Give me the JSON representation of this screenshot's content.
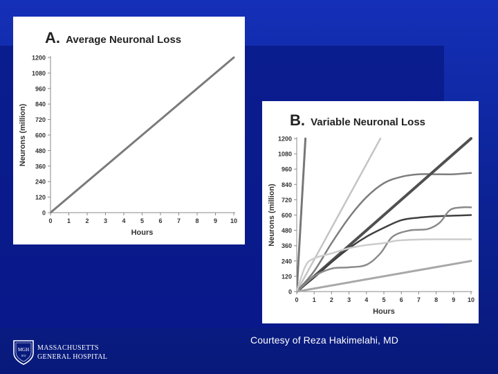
{
  "chart_data": [
    {
      "type": "line",
      "letter": "A.",
      "title": "Average Neuronal Loss",
      "xlabel": "Hours",
      "ylabel": "Neurons (million)",
      "xlim": [
        0,
        10
      ],
      "ylim": [
        0,
        1200
      ],
      "xticks": [
        "0",
        "1",
        "2",
        "3",
        "4",
        "5",
        "6",
        "7",
        "8",
        "9",
        "10"
      ],
      "yticks": [
        "0",
        "120",
        "240",
        "360",
        "480",
        "600",
        "720",
        "840",
        "960",
        "1080",
        "1200"
      ],
      "grid": false,
      "series": [
        {
          "name": "average",
          "color": "#7a7a7a",
          "width": 3,
          "points": [
            [
              0,
              0
            ],
            [
              10,
              1200
            ]
          ]
        }
      ]
    },
    {
      "type": "line",
      "letter": "B.",
      "title": "Variable Neuronal Loss",
      "xlabel": "Hours",
      "ylabel": "Neurons (million)",
      "xlim": [
        0,
        10
      ],
      "ylim": [
        0,
        1200
      ],
      "xticks": [
        "0",
        "1",
        "2",
        "3",
        "4",
        "5",
        "6",
        "7",
        "8",
        "9",
        "10"
      ],
      "yticks": [
        "0",
        "120",
        "240",
        "360",
        "480",
        "600",
        "720",
        "840",
        "960",
        "1080",
        "1200"
      ],
      "grid": false,
      "series": [
        {
          "name": "steep-1",
          "color": "#777777",
          "width": 3,
          "points": [
            [
              0,
              0
            ],
            [
              0.5,
              1200
            ]
          ]
        },
        {
          "name": "steep-2",
          "color": "#c4c4c4",
          "width": 2.5,
          "points": [
            [
              0,
              0
            ],
            [
              4.8,
              1200
            ]
          ]
        },
        {
          "name": "rise-plateau-930",
          "color": "#7d7d7d",
          "width": 2.5,
          "points": [
            [
              0,
              0
            ],
            [
              1,
              160
            ],
            [
              2,
              380
            ],
            [
              3,
              580
            ],
            [
              4,
              740
            ],
            [
              5,
              850
            ],
            [
              6,
              900
            ],
            [
              7,
              920
            ],
            [
              8,
              920
            ],
            [
              9,
              920
            ],
            [
              10,
              930
            ]
          ]
        },
        {
          "name": "linear-1200",
          "color": "#505050",
          "width": 4,
          "points": [
            [
              0,
              0
            ],
            [
              10,
              1200
            ]
          ]
        },
        {
          "name": "rise-plateau-600",
          "color": "#404040",
          "width": 2.5,
          "points": [
            [
              0,
              0
            ],
            [
              1,
              110
            ],
            [
              2,
              230
            ],
            [
              3,
              340
            ],
            [
              4,
              430
            ],
            [
              5,
              500
            ],
            [
              6,
              560
            ],
            [
              7,
              580
            ],
            [
              8,
              590
            ],
            [
              9,
              595
            ],
            [
              10,
              600
            ]
          ]
        },
        {
          "name": "stepped-660",
          "color": "#8a8a8a",
          "width": 2.5,
          "points": [
            [
              0,
              0
            ],
            [
              1,
              120
            ],
            [
              2,
              180
            ],
            [
              3,
              190
            ],
            [
              4,
              210
            ],
            [
              4.8,
              300
            ],
            [
              5.5,
              430
            ],
            [
              6.5,
              480
            ],
            [
              7.5,
              490
            ],
            [
              8.2,
              540
            ],
            [
              8.8,
              640
            ],
            [
              9.5,
              660
            ],
            [
              10,
              660
            ]
          ]
        },
        {
          "name": "fast-plateau-410",
          "color": "#cccccc",
          "width": 2.5,
          "points": [
            [
              0,
              0
            ],
            [
              0.5,
              200
            ],
            [
              1,
              260
            ],
            [
              2,
              300
            ],
            [
              3,
              340
            ],
            [
              4,
              365
            ],
            [
              5,
              380
            ],
            [
              5.8,
              400
            ],
            [
              7,
              408
            ],
            [
              8,
              410
            ],
            [
              10,
              410
            ]
          ]
        },
        {
          "name": "slow-linear-240",
          "color": "#a8a8a8",
          "width": 3,
          "points": [
            [
              0,
              0
            ],
            [
              10,
              240
            ]
          ]
        }
      ]
    }
  ],
  "footer": {
    "credit": "Courtesy of Reza Hakimelahi, MD",
    "hospital_line1": "MASSACHUSETTS",
    "hospital_line2": "GENERAL HOSPITAL",
    "logo_text": "MGH",
    "logo_year": "1811"
  }
}
